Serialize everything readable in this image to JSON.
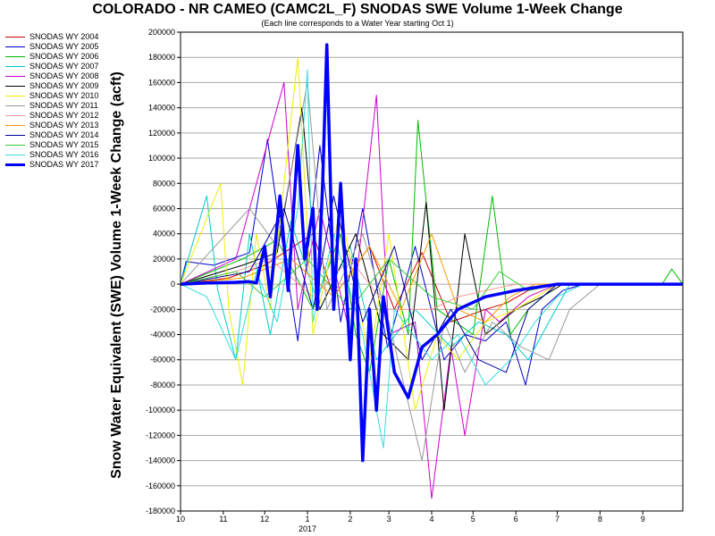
{
  "chart_data": {
    "type": "line",
    "title": "COLORADO - NR CAMEO (CAMC2L_F) SNODAS SWE Volume 1-Week Change",
    "subtitle": "(Each line corresponds to a Water Year starting Oct 1)",
    "xlabel": "",
    "ylabel": "Snow Water Equivalent (SWE) Volume 1-Week Change (acft)",
    "ylim": [
      -180000,
      200000
    ],
    "yticks": [
      200000,
      180000,
      160000,
      140000,
      120000,
      100000,
      80000,
      60000,
      40000,
      20000,
      0,
      -20000,
      -40000,
      -60000,
      -80000,
      -100000,
      -120000,
      -140000,
      -160000,
      -180000
    ],
    "ytick_labels": [
      "200000",
      "180000",
      "160000",
      "140000",
      "120000",
      "100000",
      "80000",
      "60000",
      "40000",
      "20000",
      "0",
      "-20000",
      "-40000",
      "-60000",
      "-80000",
      "-100000",
      "-120000",
      "-140000",
      "-160000",
      "-180000"
    ],
    "xlim": [
      "2016-10-01",
      "2017-09-30"
    ],
    "xticks": [
      "2016-10-01",
      "2016-11-01",
      "2016-12-01",
      "2017-01-01",
      "2017-02-01",
      "2017-03-01",
      "2017-04-01",
      "2017-05-01",
      "2017-06-01",
      "2017-07-01",
      "2017-08-01",
      "2017-09-01"
    ],
    "xtick_labels": [
      "10",
      "11",
      "12",
      "1",
      "2",
      "3",
      "4",
      "5",
      "6",
      "7",
      "8",
      "9"
    ],
    "x_year_label": "2017",
    "grid": "horizontal",
    "legend_position": "left-outside",
    "series": [
      {
        "name": "SNODAS WY 2004",
        "color": "#cc0000",
        "width": 1,
        "points": [
          [
            "2016-10-01",
            0
          ],
          [
            "2016-11-05",
            5000
          ],
          [
            "2016-12-01",
            15000
          ],
          [
            "2017-01-05",
            40000
          ],
          [
            "2017-01-20",
            -10000
          ],
          [
            "2017-02-15",
            30000
          ],
          [
            "2017-03-05",
            -20000
          ],
          [
            "2017-03-25",
            25000
          ],
          [
            "2017-04-15",
            -30000
          ],
          [
            "2017-05-10",
            -20000
          ],
          [
            "2017-05-25",
            -15000
          ],
          [
            "2017-06-10",
            -5000
          ],
          [
            "2017-07-01",
            0
          ],
          [
            "2017-09-30",
            0
          ]
        ]
      },
      {
        "name": "SNODAS WY 2005",
        "color": "#0000cc",
        "width": 1,
        "points": [
          [
            "2016-10-01",
            0
          ],
          [
            "2016-10-05",
            18000
          ],
          [
            "2016-10-25",
            15000
          ],
          [
            "2016-11-20",
            25000
          ],
          [
            "2016-12-03",
            115000
          ],
          [
            "2016-12-10",
            60000
          ],
          [
            "2016-12-25",
            -45000
          ],
          [
            "2017-01-10",
            110000
          ],
          [
            "2017-01-25",
            -30000
          ],
          [
            "2017-02-10",
            60000
          ],
          [
            "2017-02-28",
            -50000
          ],
          [
            "2017-03-20",
            30000
          ],
          [
            "2017-04-10",
            -60000
          ],
          [
            "2017-04-25",
            -40000
          ],
          [
            "2017-05-10",
            -45000
          ],
          [
            "2017-05-25",
            -30000
          ],
          [
            "2017-06-08",
            -80000
          ],
          [
            "2017-06-20",
            -20000
          ],
          [
            "2017-07-05",
            -5000
          ],
          [
            "2017-07-20",
            0
          ],
          [
            "2017-09-30",
            0
          ]
        ]
      },
      {
        "name": "SNODAS WY 2006",
        "color": "#00bb00",
        "width": 1,
        "points": [
          [
            "2016-10-01",
            0
          ],
          [
            "2016-11-15",
            20000
          ],
          [
            "2016-12-10",
            35000
          ],
          [
            "2017-01-05",
            -20000
          ],
          [
            "2017-01-25",
            40000
          ],
          [
            "2017-02-05",
            -40000
          ],
          [
            "2017-02-15",
            -70000
          ],
          [
            "2017-03-01",
            20000
          ],
          [
            "2017-03-15",
            -40000
          ],
          [
            "2017-03-22",
            130000
          ],
          [
            "2017-04-05",
            -20000
          ],
          [
            "2017-05-01",
            -40000
          ],
          [
            "2017-05-15",
            70000
          ],
          [
            "2017-05-28",
            -40000
          ],
          [
            "2017-06-10",
            -20000
          ],
          [
            "2017-07-01",
            0
          ],
          [
            "2017-09-15",
            0
          ],
          [
            "2017-09-22",
            12000
          ],
          [
            "2017-09-30",
            0
          ]
        ]
      },
      {
        "name": "SNODAS WY 2007",
        "color": "#00cccc",
        "width": 1,
        "points": [
          [
            "2016-10-01",
            0
          ],
          [
            "2016-10-20",
            70000
          ],
          [
            "2016-10-28",
            -5000
          ],
          [
            "2016-11-10",
            -60000
          ],
          [
            "2016-11-20",
            40000
          ],
          [
            "2016-12-05",
            -40000
          ],
          [
            "2016-12-20",
            50000
          ],
          [
            "2017-01-10",
            -20000
          ],
          [
            "2017-02-01",
            30000
          ],
          [
            "2017-02-20",
            -60000
          ],
          [
            "2017-03-20",
            -20000
          ],
          [
            "2017-04-15",
            -50000
          ],
          [
            "2017-05-05",
            -30000
          ],
          [
            "2017-05-25",
            -40000
          ],
          [
            "2017-06-10",
            -60000
          ],
          [
            "2017-06-25",
            -30000
          ],
          [
            "2017-07-10",
            0
          ],
          [
            "2017-09-30",
            0
          ]
        ]
      },
      {
        "name": "SNODAS WY 2008",
        "color": "#cc00cc",
        "width": 1,
        "points": [
          [
            "2016-10-01",
            0
          ],
          [
            "2016-11-10",
            20000
          ],
          [
            "2016-12-15",
            160000
          ],
          [
            "2016-12-25",
            -20000
          ],
          [
            "2017-01-10",
            60000
          ],
          [
            "2017-02-01",
            -40000
          ],
          [
            "2017-02-20",
            150000
          ],
          [
            "2017-03-01",
            -40000
          ],
          [
            "2017-03-20",
            -30000
          ],
          [
            "2017-04-01",
            -170000
          ],
          [
            "2017-04-15",
            -50000
          ],
          [
            "2017-04-25",
            -120000
          ],
          [
            "2017-05-10",
            -20000
          ],
          [
            "2017-05-20",
            -30000
          ],
          [
            "2017-06-10",
            -10000
          ],
          [
            "2017-07-01",
            0
          ],
          [
            "2017-09-30",
            0
          ]
        ]
      },
      {
        "name": "SNODAS WY 2009",
        "color": "#000000",
        "width": 1,
        "points": [
          [
            "2016-10-01",
            0
          ],
          [
            "2016-11-15",
            15000
          ],
          [
            "2016-12-10",
            25000
          ],
          [
            "2016-12-28",
            140000
          ],
          [
            "2017-01-10",
            -20000
          ],
          [
            "2017-02-05",
            40000
          ],
          [
            "2017-02-25",
            -40000
          ],
          [
            "2017-03-15",
            -60000
          ],
          [
            "2017-03-28",
            65000
          ],
          [
            "2017-04-10",
            -100000
          ],
          [
            "2017-04-25",
            40000
          ],
          [
            "2017-05-10",
            -40000
          ],
          [
            "2017-06-01",
            -20000
          ],
          [
            "2017-06-20",
            -10000
          ],
          [
            "2017-07-05",
            0
          ],
          [
            "2017-09-30",
            0
          ]
        ]
      },
      {
        "name": "SNODAS WY 2010",
        "color": "#eeee00",
        "width": 1,
        "points": [
          [
            "2016-10-01",
            0
          ],
          [
            "2016-10-30",
            80000
          ],
          [
            "2016-11-05",
            -20000
          ],
          [
            "2016-11-15",
            -80000
          ],
          [
            "2016-11-25",
            40000
          ],
          [
            "2016-12-05",
            -20000
          ],
          [
            "2016-12-25",
            180000
          ],
          [
            "2017-01-05",
            -40000
          ],
          [
            "2017-01-25",
            60000
          ],
          [
            "2017-02-15",
            -60000
          ],
          [
            "2017-03-01",
            40000
          ],
          [
            "2017-03-20",
            -100000
          ],
          [
            "2017-04-05",
            -40000
          ],
          [
            "2017-04-20",
            -60000
          ],
          [
            "2017-05-10",
            -30000
          ],
          [
            "2017-06-01",
            -20000
          ],
          [
            "2017-07-01",
            0
          ],
          [
            "2017-09-30",
            0
          ]
        ]
      },
      {
        "name": "SNODAS WY 2011",
        "color": "#999999",
        "width": 1,
        "points": [
          [
            "2016-10-01",
            0
          ],
          [
            "2016-11-20",
            60000
          ],
          [
            "2016-12-10",
            30000
          ],
          [
            "2017-01-01",
            160000
          ],
          [
            "2017-01-15",
            -20000
          ],
          [
            "2017-02-10",
            40000
          ],
          [
            "2017-03-01",
            -30000
          ],
          [
            "2017-03-25",
            -140000
          ],
          [
            "2017-04-10",
            -30000
          ],
          [
            "2017-04-25",
            -70000
          ],
          [
            "2017-05-15",
            -30000
          ],
          [
            "2017-06-05",
            -50000
          ],
          [
            "2017-06-25",
            -60000
          ],
          [
            "2017-07-10",
            -20000
          ],
          [
            "2017-08-01",
            0
          ],
          [
            "2017-09-30",
            0
          ]
        ]
      },
      {
        "name": "SNODAS WY 2012",
        "color": "#ff9999",
        "width": 1,
        "points": [
          [
            "2016-10-01",
            0
          ],
          [
            "2016-11-10",
            10000
          ],
          [
            "2016-12-05",
            20000
          ],
          [
            "2017-01-05",
            -10000
          ],
          [
            "2017-02-01",
            20000
          ],
          [
            "2017-03-01",
            -20000
          ],
          [
            "2017-04-01",
            -20000
          ],
          [
            "2017-04-20",
            -10000
          ],
          [
            "2017-05-10",
            -5000
          ],
          [
            "2017-06-01",
            0
          ],
          [
            "2017-09-30",
            0
          ]
        ]
      },
      {
        "name": "SNODAS WY 2013",
        "color": "#ff9900",
        "width": 1,
        "points": [
          [
            "2016-10-01",
            0
          ],
          [
            "2016-11-15",
            5000
          ],
          [
            "2016-12-20",
            20000
          ],
          [
            "2017-01-20",
            -10000
          ],
          [
            "2017-02-15",
            30000
          ],
          [
            "2017-03-10",
            -20000
          ],
          [
            "2017-04-01",
            40000
          ],
          [
            "2017-04-20",
            -20000
          ],
          [
            "2017-05-10",
            -30000
          ],
          [
            "2017-05-28",
            -10000
          ],
          [
            "2017-06-15",
            0
          ],
          [
            "2017-09-30",
            0
          ]
        ]
      },
      {
        "name": "SNODAS WY 2014",
        "color": "#000099",
        "width": 1,
        "points": [
          [
            "2016-10-01",
            0
          ],
          [
            "2016-11-20",
            10000
          ],
          [
            "2016-12-15",
            60000
          ],
          [
            "2017-01-05",
            -20000
          ],
          [
            "2017-01-20",
            70000
          ],
          [
            "2017-02-10",
            -30000
          ],
          [
            "2017-03-05",
            30000
          ],
          [
            "2017-03-25",
            -60000
          ],
          [
            "2017-04-15",
            -20000
          ],
          [
            "2017-05-05",
            -60000
          ],
          [
            "2017-05-25",
            -70000
          ],
          [
            "2017-06-10",
            -20000
          ],
          [
            "2017-07-01",
            0
          ],
          [
            "2017-09-30",
            0
          ]
        ]
      },
      {
        "name": "SNODAS WY 2015",
        "color": "#33cc33",
        "width": 1,
        "points": [
          [
            "2016-10-01",
            0
          ],
          [
            "2016-11-10",
            10000
          ],
          [
            "2016-12-01",
            -10000
          ],
          [
            "2017-01-01",
            20000
          ],
          [
            "2017-02-01",
            -20000
          ],
          [
            "2017-03-01",
            20000
          ],
          [
            "2017-04-01",
            -10000
          ],
          [
            "2017-05-01",
            -20000
          ],
          [
            "2017-05-20",
            10000
          ],
          [
            "2017-06-10",
            -5000
          ],
          [
            "2017-07-01",
            0
          ],
          [
            "2017-09-30",
            0
          ]
        ]
      },
      {
        "name": "SNODAS WY 2016",
        "color": "#33dddd",
        "width": 1,
        "points": [
          [
            "2016-10-01",
            0
          ],
          [
            "2016-10-20",
            -10000
          ],
          [
            "2016-11-10",
            -60000
          ],
          [
            "2016-11-25",
            10000
          ],
          [
            "2016-12-10",
            -30000
          ],
          [
            "2016-12-25",
            60000
          ],
          [
            "2017-01-01",
            170000
          ],
          [
            "2017-01-05",
            -30000
          ],
          [
            "2017-01-20",
            40000
          ],
          [
            "2017-02-10",
            -40000
          ],
          [
            "2017-02-25",
            -130000
          ],
          [
            "2017-03-05",
            -20000
          ],
          [
            "2017-04-01",
            -60000
          ],
          [
            "2017-04-20",
            -40000
          ],
          [
            "2017-05-10",
            -80000
          ],
          [
            "2017-05-28",
            -60000
          ],
          [
            "2017-06-15",
            -30000
          ],
          [
            "2017-07-01",
            -10000
          ],
          [
            "2017-07-20",
            0
          ],
          [
            "2017-09-30",
            0
          ]
        ]
      },
      {
        "name": "SNODAS WY 2017",
        "color": "#0000ff",
        "width": 3.5,
        "points": [
          [
            "2016-10-01",
            0
          ],
          [
            "2016-10-20",
            1000
          ],
          [
            "2016-11-10",
            1500
          ],
          [
            "2016-11-20",
            2000
          ],
          [
            "2016-11-25",
            1000
          ],
          [
            "2016-12-01",
            30000
          ],
          [
            "2016-12-05",
            -10000
          ],
          [
            "2016-12-12",
            70000
          ],
          [
            "2016-12-18",
            -5000
          ],
          [
            "2016-12-25",
            110000
          ],
          [
            "2016-12-30",
            20000
          ],
          [
            "2017-01-05",
            60000
          ],
          [
            "2017-01-08",
            -20000
          ],
          [
            "2017-01-12",
            80000
          ],
          [
            "2017-01-15",
            190000
          ],
          [
            "2017-01-20",
            -20000
          ],
          [
            "2017-01-25",
            80000
          ],
          [
            "2017-02-01",
            -60000
          ],
          [
            "2017-02-05",
            20000
          ],
          [
            "2017-02-10",
            -140000
          ],
          [
            "2017-02-15",
            -20000
          ],
          [
            "2017-02-20",
            -100000
          ],
          [
            "2017-02-25",
            -10000
          ],
          [
            "2017-03-05",
            -70000
          ],
          [
            "2017-03-15",
            -90000
          ],
          [
            "2017-03-25",
            -50000
          ],
          [
            "2017-04-05",
            -40000
          ],
          [
            "2017-04-20",
            -20000
          ],
          [
            "2017-05-10",
            -10000
          ],
          [
            "2017-06-01",
            -5000
          ],
          [
            "2017-07-01",
            0
          ],
          [
            "2017-09-30",
            0
          ]
        ]
      }
    ]
  }
}
